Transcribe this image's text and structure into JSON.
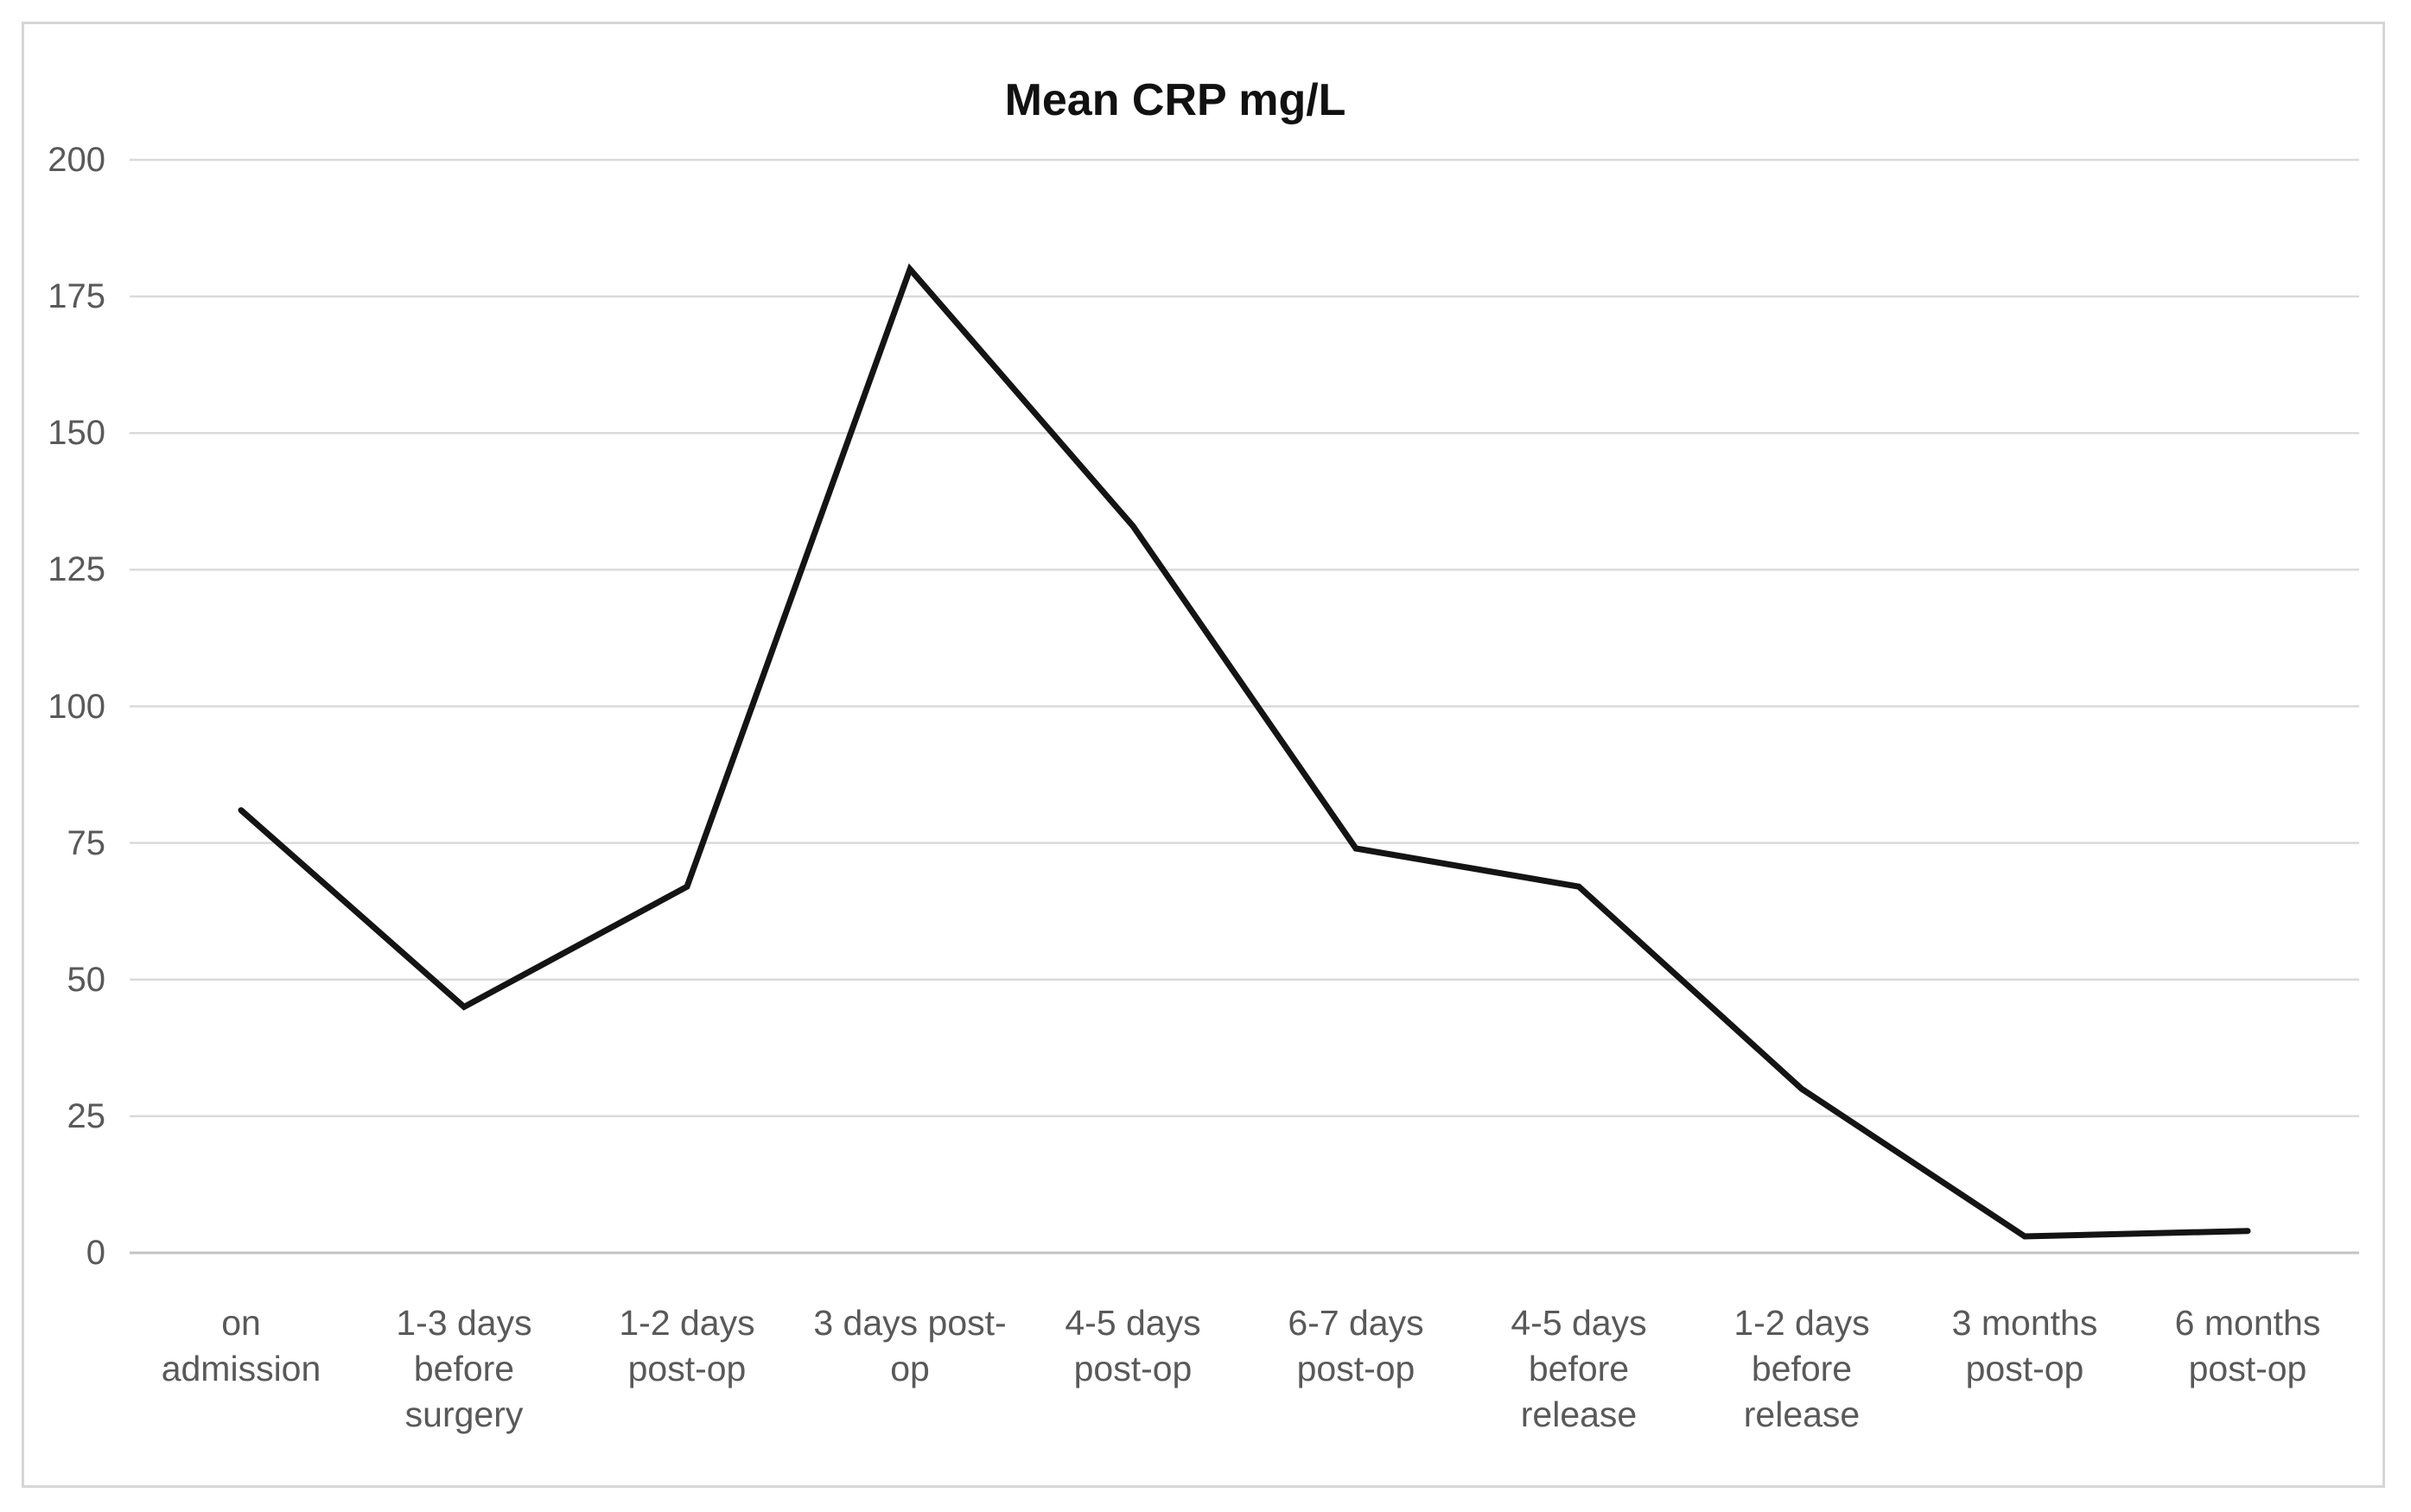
{
  "chart_data": {
    "type": "line",
    "title": "Mean CRP mg/L",
    "categories": [
      "on admission",
      "1-3 days before surgery",
      "1-2 days post-op",
      "3 days post-op",
      "4-5 days post-op",
      "6-7 days post-op",
      "4-5 days before release",
      "1-2 days before release",
      "3 months post-op",
      "6 months post-op"
    ],
    "series": [
      {
        "name": "Mean CRP mg/L",
        "values": [
          81,
          45,
          67,
          180,
          133,
          74,
          67,
          30,
          3,
          4
        ]
      }
    ],
    "xlabel": "",
    "ylabel": "",
    "ylim": [
      0,
      200
    ],
    "yticks": [
      0,
      25,
      50,
      75,
      100,
      125,
      150,
      175,
      200
    ],
    "grid": "horizontal",
    "legend_position": "none",
    "colors": {
      "series_line": "#141414",
      "gridline": "#dadada",
      "zero_axis_line": "#c3c3c3",
      "tick_label": "#595959",
      "title": "#111111",
      "figure_border": "#d6d6d6",
      "background": "#ffffff"
    }
  }
}
